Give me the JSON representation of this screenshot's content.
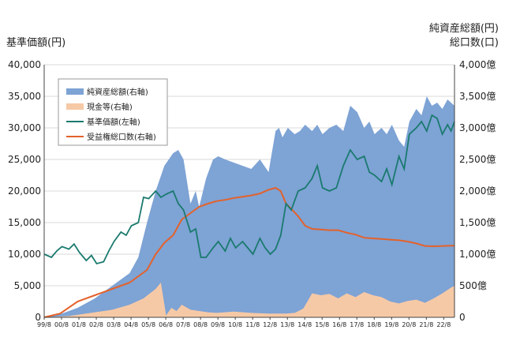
{
  "chart_data": {
    "type": "area",
    "left_axis_title": "基準価額(円)",
    "right_axis_title_1": "純資産総額(円)",
    "right_axis_title_2": "総口数(口)",
    "left_ticks": [
      "0",
      "5,000",
      "10,000",
      "15,000",
      "20,000",
      "25,000",
      "30,000",
      "35,000",
      "40,000"
    ],
    "right_ticks": [
      "0",
      "500億",
      "1,000億",
      "1,500億",
      "2,000億",
      "2,500億",
      "3,000億",
      "3,500億",
      "4,000億"
    ],
    "ylim_left": [
      0,
      40000
    ],
    "ylim_right_oku": [
      0,
      4000
    ],
    "x_labels": [
      "99/8",
      "00/8",
      "01/8",
      "02/8",
      "03/8",
      "04/8",
      "05/8",
      "06/8",
      "07/8",
      "08/8",
      "09/8",
      "10/8",
      "11/8",
      "12/8",
      "13/8",
      "14/8",
      "15/8",
      "16/8",
      "17/8",
      "18/8",
      "19/8",
      "20/8",
      "21/8",
      "22/8"
    ],
    "x_range": [
      1999.58,
      2023.2
    ],
    "legend_position": "top-left",
    "colors": {
      "net_assets": "#7ea3d5",
      "cash": "#f6c9a6",
      "nav": "#1a7a6e",
      "units": "#e4612a"
    },
    "series": [
      {
        "name": "純資産総額(右軸)",
        "axis": "right",
        "kind": "area",
        "x": [
          1999.58,
          2000.5,
          2001.5,
          2002.5,
          2003.5,
          2004.5,
          2005.0,
          2005.5,
          2006.0,
          2006.5,
          2007.0,
          2007.3,
          2007.6,
          2008.0,
          2008.3,
          2008.5,
          2008.9,
          2009.3,
          2009.6,
          2010.0,
          2010.5,
          2011.0,
          2011.5,
          2012.0,
          2012.5,
          2012.9,
          2013.1,
          2013.3,
          2013.6,
          2014.0,
          2014.3,
          2014.6,
          2015.0,
          2015.3,
          2015.6,
          2016.0,
          2016.4,
          2016.8,
          2017.2,
          2017.6,
          2018.0,
          2018.3,
          2018.6,
          2019.0,
          2019.3,
          2019.6,
          2020.0,
          2020.3,
          2020.6,
          2021.0,
          2021.3,
          2021.6,
          2021.9,
          2022.2,
          2022.5,
          2022.8,
          2023.0,
          2023.2
        ],
        "values": [
          5,
          50,
          150,
          300,
          500,
          700,
          950,
          1500,
          2000,
          2400,
          2600,
          2650,
          2500,
          1800,
          2000,
          1750,
          2200,
          2500,
          2550,
          2500,
          2450,
          2400,
          2350,
          2500,
          2300,
          2950,
          3000,
          2850,
          3000,
          2900,
          2950,
          3050,
          2950,
          3050,
          2900,
          3000,
          3050,
          2950,
          3350,
          3250,
          3000,
          3100,
          2900,
          3000,
          2900,
          3050,
          2800,
          2700,
          3100,
          3300,
          3200,
          3500,
          3350,
          3400,
          3300,
          3450,
          3400,
          3350
        ]
      },
      {
        "name": "現金等(右軸)",
        "axis": "right",
        "kind": "area",
        "x": [
          1999.58,
          2001.0,
          2002.5,
          2003.5,
          2004.5,
          2005.3,
          2006.0,
          2006.3,
          2006.6,
          2006.9,
          2007.2,
          2007.5,
          2008.0,
          2008.5,
          2009.0,
          2009.5,
          2010.5,
          2011.5,
          2012.5,
          2013.0,
          2013.5,
          2014.0,
          2014.5,
          2015.0,
          2015.5,
          2016.0,
          2016.5,
          2017.0,
          2017.5,
          2018.0,
          2018.5,
          2019.0,
          2019.5,
          2020.0,
          2020.5,
          2021.0,
          2021.5,
          2022.0,
          2022.5,
          2023.0,
          2023.2
        ],
        "values": [
          0,
          20,
          80,
          120,
          200,
          300,
          450,
          550,
          30,
          150,
          100,
          200,
          120,
          100,
          80,
          70,
          90,
          70,
          60,
          60,
          60,
          70,
          140,
          380,
          350,
          370,
          300,
          380,
          320,
          400,
          350,
          320,
          250,
          220,
          260,
          280,
          230,
          300,
          380,
          470,
          500
        ]
      },
      {
        "name": "基準価額(左軸)",
        "axis": "left",
        "kind": "line",
        "x": [
          1999.58,
          2000.0,
          2000.3,
          2000.6,
          2001.0,
          2001.3,
          2001.6,
          2002.0,
          2002.3,
          2002.6,
          2003.0,
          2003.3,
          2003.6,
          2004.0,
          2004.3,
          2004.6,
          2005.0,
          2005.3,
          2005.6,
          2006.0,
          2006.3,
          2006.6,
          2007.0,
          2007.3,
          2007.6,
          2008.0,
          2008.3,
          2008.6,
          2008.9,
          2009.3,
          2009.6,
          2010.0,
          2010.3,
          2010.6,
          2011.0,
          2011.3,
          2011.6,
          2012.0,
          2012.3,
          2012.6,
          2012.9,
          2013.2,
          2013.5,
          2013.8,
          2014.2,
          2014.6,
          2015.0,
          2015.3,
          2015.6,
          2016.0,
          2016.4,
          2016.8,
          2017.2,
          2017.6,
          2018.0,
          2018.3,
          2018.6,
          2019.0,
          2019.3,
          2019.6,
          2020.0,
          2020.3,
          2020.6,
          2021.0,
          2021.3,
          2021.6,
          2021.9,
          2022.2,
          2022.5,
          2022.8,
          2023.0,
          2023.2
        ],
        "values": [
          10000,
          9500,
          10500,
          11200,
          10800,
          11600,
          10300,
          9000,
          9800,
          8500,
          8800,
          10500,
          12000,
          13500,
          13000,
          14500,
          15000,
          19000,
          18800,
          20000,
          19000,
          19500,
          20000,
          18000,
          17000,
          13500,
          14000,
          9500,
          9500,
          11000,
          12000,
          10500,
          12500,
          11000,
          12000,
          11000,
          10000,
          12500,
          11000,
          10000,
          10800,
          13000,
          18000,
          17000,
          20000,
          20500,
          22000,
          24000,
          20500,
          20000,
          20500,
          24000,
          26500,
          25000,
          25500,
          23000,
          22500,
          21500,
          23500,
          21000,
          25500,
          23500,
          29000,
          30000,
          31000,
          29500,
          32000,
          31500,
          29000,
          30500,
          29500,
          31000
        ]
      },
      {
        "name": "受益権総口数(右軸)",
        "axis": "right",
        "kind": "line",
        "unit": "億口",
        "x": [
          1999.58,
          2000.5,
          2001.5,
          2002.5,
          2003.5,
          2004.5,
          2005.0,
          2005.5,
          2006.0,
          2006.5,
          2007.0,
          2007.5,
          2008.0,
          2008.5,
          2009.0,
          2009.5,
          2010.0,
          2010.5,
          2011.0,
          2011.5,
          2012.0,
          2012.5,
          2012.9,
          2013.2,
          2013.5,
          2013.8,
          2014.2,
          2014.6,
          2015.0,
          2015.5,
          2016.0,
          2016.5,
          2017.0,
          2017.5,
          2018.0,
          2018.5,
          2019.0,
          2019.5,
          2020.0,
          2020.5,
          2021.0,
          2021.5,
          2022.0,
          2022.5,
          2023.0,
          2023.2
        ],
        "values": [
          0,
          60,
          250,
          350,
          450,
          550,
          650,
          750,
          1000,
          1180,
          1300,
          1550,
          1650,
          1750,
          1800,
          1840,
          1860,
          1890,
          1910,
          1930,
          1960,
          2020,
          2050,
          2000,
          1800,
          1720,
          1600,
          1450,
          1400,
          1390,
          1380,
          1380,
          1340,
          1310,
          1260,
          1250,
          1240,
          1230,
          1220,
          1200,
          1170,
          1130,
          1125,
          1130,
          1135,
          1135
        ]
      }
    ]
  }
}
